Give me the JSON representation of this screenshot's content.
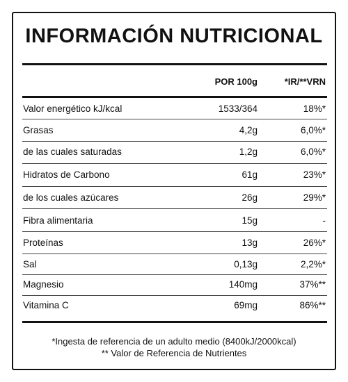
{
  "header": {
    "title": "INFORMACIÓN NUTRICIONAL"
  },
  "table": {
    "columns": [
      "POR 100g",
      "*IR/**VRN"
    ],
    "rows": [
      [
        "Valor energético kJ/kcal",
        "1533/364",
        "18%*"
      ],
      [
        "Grasas",
        "4,2g",
        "6,0%*"
      ],
      [
        "de las cuales saturadas",
        "1,2g",
        "6,0%*"
      ],
      [
        "Hidratos de Carbono",
        "61g",
        "23%*"
      ],
      [
        "de los cuales azúcares",
        "26g",
        "29%*"
      ],
      [
        "Fibra alimentaria",
        "15g",
        "-"
      ],
      [
        "Proteínas",
        "13g",
        "26%*"
      ],
      [
        "Sal",
        "0,13g",
        "2,2%*"
      ],
      [
        "Magnesio",
        "140mg",
        "37%**"
      ],
      [
        "Vitamina C",
        "69mg",
        "86%**"
      ]
    ]
  },
  "footnotes": [
    "*Ingesta de referencia de un adulto medio (8400kJ/2000kcal)",
    "** Valor de Referencia de Nutrientes"
  ]
}
